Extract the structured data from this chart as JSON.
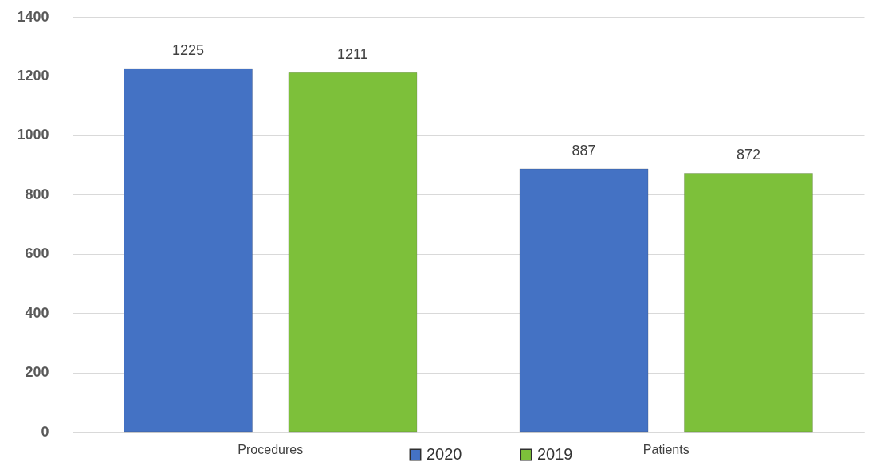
{
  "chart_data": {
    "type": "bar",
    "categories": [
      "Procedures",
      "Patients"
    ],
    "series": [
      {
        "name": "2020",
        "color": "#4472c4",
        "values": [
          1225,
          887
        ]
      },
      {
        "name": "2019",
        "color": "#7dc03a",
        "values": [
          1211,
          872
        ]
      }
    ],
    "ylim": [
      0,
      1400
    ],
    "yticks": [
      0,
      200,
      400,
      600,
      800,
      1000,
      1200,
      1400
    ],
    "grid": "y",
    "legend": "bottom",
    "data_labels": true
  }
}
